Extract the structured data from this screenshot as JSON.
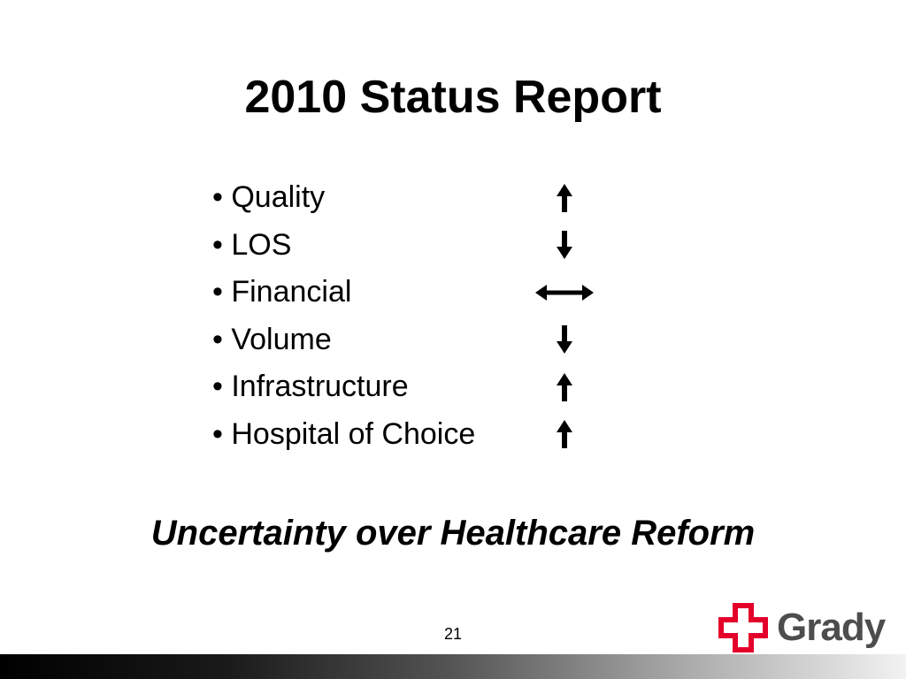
{
  "slide": {
    "title": "2010 Status Report",
    "items": [
      {
        "label": "• Quality",
        "trend": "up-arrow-icon"
      },
      {
        "label": "• LOS",
        "trend": "down-arrow-icon"
      },
      {
        "label": "• Financial",
        "trend": "left-right-arrow-icon"
      },
      {
        "label": "• Volume",
        "trend": "down-arrow-icon"
      },
      {
        "label": "• Infrastructure",
        "trend": "up-arrow-icon"
      },
      {
        "label": "• Hospital of Choice",
        "trend": "up-arrow-icon"
      }
    ],
    "subtitle": "Uncertainty over Healthcare Reform",
    "page_number": "21"
  },
  "logo": {
    "text": "Grady",
    "icon": "red-cross-icon",
    "cross_color": "#e4002b",
    "text_color": "#4d4d4d"
  },
  "colors": {
    "background": "#ffffff",
    "text": "#000000",
    "footer_gradient_start": "#000000",
    "footer_gradient_end": "#f2f2f2"
  }
}
